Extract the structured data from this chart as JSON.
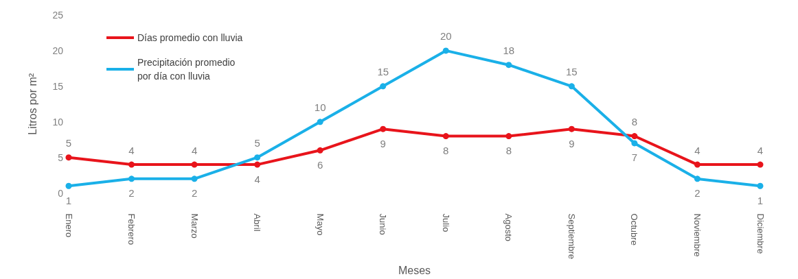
{
  "chart_data": {
    "type": "line",
    "xlabel": "Meses",
    "ylabel": "Litros por m²",
    "categories": [
      "Enero",
      "Febrero",
      "Marzo",
      "Abril",
      "Mayo",
      "Junio",
      "Julio",
      "Agosto",
      "Septiembre",
      "Octubre",
      "Noviembre",
      "Diciembre"
    ],
    "series": [
      {
        "name": "Días promedio con lluvia",
        "color": "#e8141b",
        "values": [
          5,
          4,
          4,
          4,
          6,
          9,
          8,
          8,
          9,
          8,
          4,
          4
        ]
      },
      {
        "name": "Precipitación promedio\npor día con lluvia",
        "color": "#1ab0e8",
        "values": [
          1,
          2,
          2,
          5,
          10,
          15,
          20,
          18,
          15,
          7,
          2,
          1
        ]
      }
    ],
    "ylim": [
      0,
      25
    ],
    "yticks": [
      0,
      5,
      10,
      15,
      20,
      25
    ],
    "grid": false,
    "legend": "top left",
    "marker": "circle",
    "data_labels": true
  }
}
